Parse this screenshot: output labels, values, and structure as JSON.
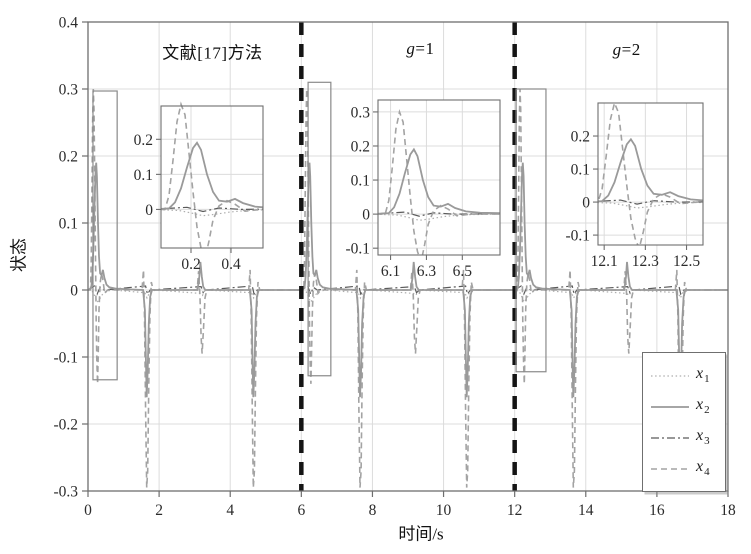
{
  "chart_data": {
    "type": "line",
    "title": "",
    "xlabel": "时间/s",
    "ylabel": "状态",
    "xlim": [
      0,
      18
    ],
    "ylim": [
      -0.3,
      0.4
    ],
    "grid": true,
    "legend_position": "bottom-right",
    "x_ticks": [
      [
        0,
        "0"
      ],
      [
        2,
        "2"
      ],
      [
        4,
        "4"
      ],
      [
        6,
        "6"
      ],
      [
        8,
        "8"
      ],
      [
        10,
        "10"
      ],
      [
        12,
        "12"
      ],
      [
        14,
        "14"
      ],
      [
        16,
        "16"
      ],
      [
        18,
        "18"
      ]
    ],
    "y_ticks": [
      [
        -0.3,
        "-0.3"
      ],
      [
        -0.2,
        "-0.2"
      ],
      [
        -0.1,
        "-0.1"
      ],
      [
        0,
        "0"
      ],
      [
        0.1,
        "0.1"
      ],
      [
        0.2,
        "0.2"
      ],
      [
        0.3,
        "0.3"
      ],
      [
        0.4,
        "0.4"
      ]
    ],
    "section_labels": [
      {
        "text": "文献[17]方法",
        "x": 3.5,
        "y": 0.357
      },
      {
        "var": "g",
        "rest": "=1",
        "x": 9.35,
        "y": 0.36
      },
      {
        "var": "g",
        "rest": "=2",
        "x": 15.15,
        "y": 0.358
      }
    ],
    "separators": {
      "x_values": [
        6,
        12
      ],
      "color": "#141414",
      "dash": "13 9",
      "width": 4.5
    },
    "colors": {
      "axis": "#6e6e6e",
      "grid": "#dcdcdc",
      "rect": "#8a8a8a",
      "text": "#2b2b2b",
      "background": "#ffffff"
    },
    "legend": {
      "entries": [
        {
          "base": "x",
          "sub": "1",
          "series": "x1",
          "line": "dotted"
        },
        {
          "base": "x",
          "sub": "2",
          "series": "x2",
          "line": "solid"
        },
        {
          "base": "x",
          "sub": "3",
          "series": "x3",
          "line": "dash-dot"
        },
        {
          "base": "x",
          "sub": "4",
          "series": "x4",
          "line": "dashed"
        }
      ]
    },
    "series_order": [
      "x1",
      "x3",
      "x4",
      "x2"
    ],
    "series_styles": {
      "x1": {
        "color": "#aeaeae",
        "width": 1.2,
        "dash": "1.5 2.6"
      },
      "x2": {
        "color": "#9a9a9a",
        "width": 1.8,
        "dash": ""
      },
      "x3": {
        "color": "#5a5a5a",
        "width": 1.2,
        "dash": "8 3 2 3"
      },
      "x4": {
        "color": "#a3a3a3",
        "width": 1.6,
        "dash": "6 4"
      }
    },
    "section_starts": [
      0,
      6,
      12
    ],
    "event_pattern": {
      "x4": [
        [
          0,
          0
        ],
        [
          0.07,
          0
        ],
        [
          0.09,
          0.04
        ],
        [
          0.11,
          0.14
        ],
        [
          0.13,
          0.25
        ],
        [
          0.15,
          0.3
        ],
        [
          0.17,
          0.27
        ],
        [
          0.19,
          0.16
        ],
        [
          0.21,
          0.05
        ],
        [
          0.23,
          -0.05
        ],
        [
          0.25,
          -0.11
        ],
        [
          0.27,
          -0.14
        ],
        [
          0.29,
          -0.09
        ],
        [
          0.31,
          -0.03
        ],
        [
          0.34,
          0.01
        ],
        [
          0.38,
          0.025
        ],
        [
          0.42,
          0.015
        ],
        [
          0.47,
          -0.005
        ],
        [
          0.55,
          0
        ],
        [
          0.8,
          0
        ],
        [
          1.52,
          0
        ],
        [
          1.56,
          0.03
        ],
        [
          1.59,
          -0.04
        ],
        [
          1.62,
          -0.18
        ],
        [
          1.65,
          -0.295
        ],
        [
          1.68,
          -0.27
        ],
        [
          1.71,
          -0.14
        ],
        [
          1.74,
          -0.04
        ],
        [
          1.78,
          0.012
        ],
        [
          1.83,
          0
        ],
        [
          2.5,
          0
        ],
        [
          3.07,
          0
        ],
        [
          3.11,
          0.028
        ],
        [
          3.15,
          -0.01
        ],
        [
          3.18,
          -0.07
        ],
        [
          3.21,
          -0.095
        ],
        [
          3.25,
          -0.055
        ],
        [
          3.29,
          -0.012
        ],
        [
          3.34,
          0
        ],
        [
          4.0,
          0
        ],
        [
          4.52,
          0
        ],
        [
          4.56,
          0.03
        ],
        [
          4.59,
          -0.04
        ],
        [
          4.62,
          -0.18
        ],
        [
          4.65,
          -0.295
        ],
        [
          4.68,
          -0.27
        ],
        [
          4.71,
          -0.14
        ],
        [
          4.74,
          -0.04
        ],
        [
          4.78,
          0.012
        ],
        [
          4.83,
          0
        ],
        [
          5.5,
          0
        ],
        [
          5.98,
          0
        ]
      ],
      "x2": [
        [
          0,
          0
        ],
        [
          0.09,
          0.003
        ],
        [
          0.12,
          0.02
        ],
        [
          0.15,
          0.06
        ],
        [
          0.18,
          0.12
        ],
        [
          0.21,
          0.175
        ],
        [
          0.23,
          0.19
        ],
        [
          0.25,
          0.17
        ],
        [
          0.28,
          0.1
        ],
        [
          0.31,
          0.05
        ],
        [
          0.34,
          0.025
        ],
        [
          0.38,
          0.022
        ],
        [
          0.42,
          0.03
        ],
        [
          0.46,
          0.018
        ],
        [
          0.52,
          0.008
        ],
        [
          0.6,
          0.004
        ],
        [
          0.8,
          0.002
        ],
        [
          1.55,
          0
        ],
        [
          1.6,
          -0.03
        ],
        [
          1.63,
          -0.11
        ],
        [
          1.65,
          -0.16
        ],
        [
          1.68,
          -0.12
        ],
        [
          1.71,
          -0.05
        ],
        [
          1.75,
          -0.01
        ],
        [
          1.8,
          0
        ],
        [
          3.08,
          0
        ],
        [
          3.13,
          0.02
        ],
        [
          3.16,
          0.042
        ],
        [
          3.2,
          0.02
        ],
        [
          3.24,
          0.005
        ],
        [
          3.3,
          0
        ],
        [
          4.55,
          0
        ],
        [
          4.6,
          -0.03
        ],
        [
          4.63,
          -0.11
        ],
        [
          4.65,
          -0.16
        ],
        [
          4.68,
          -0.12
        ],
        [
          4.71,
          -0.05
        ],
        [
          4.75,
          -0.01
        ],
        [
          4.8,
          0
        ],
        [
          5.98,
          0
        ]
      ],
      "x1": [
        [
          0,
          0
        ],
        [
          0.14,
          -0.003
        ],
        [
          0.2,
          -0.01
        ],
        [
          0.26,
          -0.018
        ],
        [
          0.32,
          -0.014
        ],
        [
          0.4,
          -0.007
        ],
        [
          0.5,
          -0.002
        ],
        [
          0.7,
          0
        ],
        [
          1.6,
          -0.004
        ],
        [
          1.66,
          -0.012
        ],
        [
          1.73,
          -0.004
        ],
        [
          1.9,
          0
        ],
        [
          3.15,
          -0.005
        ],
        [
          3.22,
          -0.008
        ],
        [
          3.3,
          0
        ],
        [
          4.6,
          -0.004
        ],
        [
          4.66,
          -0.012
        ],
        [
          4.73,
          -0.004
        ],
        [
          4.9,
          0
        ],
        [
          5.98,
          0
        ]
      ],
      "x3": [
        [
          0,
          0
        ],
        [
          0.18,
          0.006
        ],
        [
          0.26,
          -0.006
        ],
        [
          0.34,
          0.004
        ],
        [
          0.45,
          0
        ],
        [
          1.62,
          0.006
        ],
        [
          1.67,
          -0.006
        ],
        [
          1.75,
          0
        ],
        [
          3.18,
          0.005
        ],
        [
          3.24,
          -0.004
        ],
        [
          3.32,
          0
        ],
        [
          4.62,
          0.006
        ],
        [
          4.67,
          -0.006
        ],
        [
          4.76,
          0
        ],
        [
          5.98,
          0
        ]
      ]
    },
    "zoom_rects": [
      {
        "x0": 0.14,
        "x1": 0.82,
        "y0": -0.134,
        "y1": 0.297
      },
      {
        "x0": 6.19,
        "x1": 6.83,
        "y0": -0.128,
        "y1": 0.31
      },
      {
        "x0": 12.04,
        "x1": 12.88,
        "y0": -0.122,
        "y1": 0.3
      }
    ],
    "insets": [
      {
        "x_range": [
          0.05,
          0.56
        ],
        "y_range": [
          -0.11,
          0.295
        ],
        "x_ticks": [
          [
            0.2,
            "0.2"
          ],
          [
            0.4,
            "0.4"
          ]
        ],
        "y_ticks": [
          [
            0,
            "0"
          ],
          [
            0.1,
            "0.1"
          ],
          [
            0.2,
            "0.2"
          ]
        ]
      },
      {
        "x_range": [
          6.03,
          6.71
        ],
        "y_range": [
          -0.12,
          0.335
        ],
        "x_ticks": [
          [
            6.1,
            "6.1"
          ],
          [
            6.3,
            "6.3"
          ],
          [
            6.5,
            "6.5"
          ]
        ],
        "y_ticks": [
          [
            -0.1,
            "-0.1"
          ],
          [
            0,
            "0"
          ],
          [
            0.1,
            "0.1"
          ],
          [
            0.2,
            "0.2"
          ],
          [
            0.3,
            "0.3"
          ]
        ]
      },
      {
        "x_range": [
          12.07,
          12.58
        ],
        "y_range": [
          -0.13,
          0.3
        ],
        "x_ticks": [
          [
            12.1,
            "12.1"
          ],
          [
            12.3,
            "12.3"
          ],
          [
            12.5,
            "12.5"
          ]
        ],
        "y_ticks": [
          [
            -0.1,
            "-0.1"
          ],
          [
            0,
            "0"
          ],
          [
            0.1,
            "0.1"
          ],
          [
            0.2,
            "0.2"
          ]
        ]
      }
    ]
  }
}
